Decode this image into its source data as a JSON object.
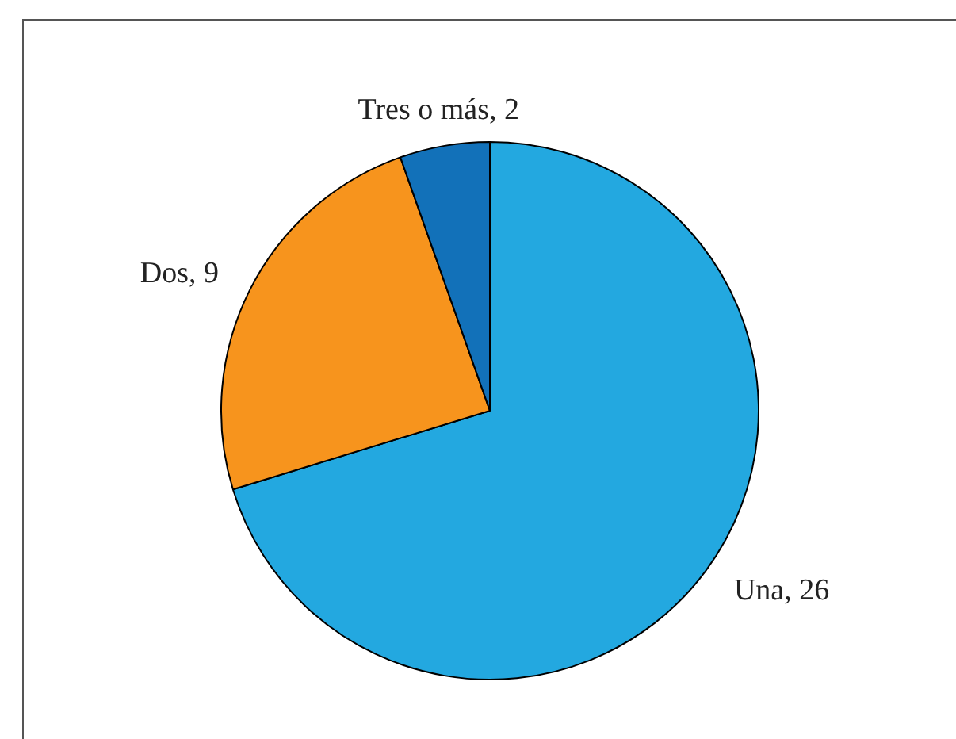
{
  "chart_data": {
    "type": "pie",
    "categories": [
      "Una",
      "Dos",
      "Tres o más"
    ],
    "values": [
      26,
      9,
      2
    ],
    "value_labels": [
      ", 26",
      ", 9",
      ", 2"
    ],
    "colors": [
      "#23a8e0",
      "#f7941d",
      "#1271b9"
    ],
    "legend": false
  }
}
